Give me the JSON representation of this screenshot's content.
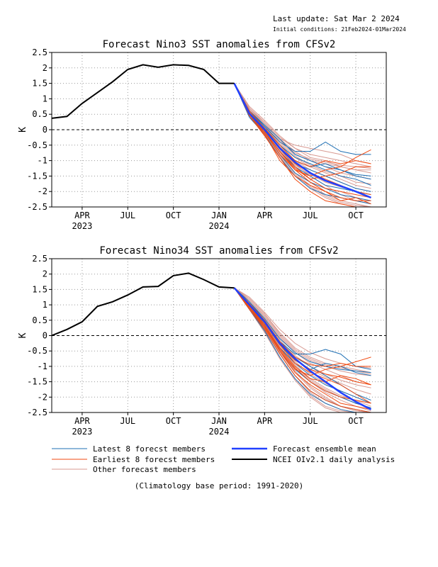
{
  "header": {
    "last_update": "Last update: Sat Mar  2 2024",
    "initial_conditions": "Initial conditions: 21Feb2024-01Mar2024"
  },
  "footer": {
    "climatology": "(Climatology base period: 1991-2020)"
  },
  "legend": {
    "items": [
      {
        "label": "Latest 8 forecst members",
        "color": "#1e6fb4"
      },
      {
        "label": "Earliest 8 forecst members",
        "color": "#f04a12"
      },
      {
        "label": "Other forecast members",
        "color": "#d89a92"
      },
      {
        "label": "Forecast ensemble mean",
        "color": "#2040ff"
      },
      {
        "label": "NCEI OIv2.1 daily analysis",
        "color": "#000000"
      }
    ]
  },
  "chart_data": [
    {
      "type": "line",
      "title": "Forecast Nino3 SST anomalies from CFSv2",
      "ylabel": "K",
      "ylim": [
        -2.5,
        2.5
      ],
      "yticks": [
        2.5,
        2,
        1.5,
        1,
        0.5,
        0,
        -0.5,
        -1,
        -1.5,
        -2,
        -2.5
      ],
      "ytick_labels": [
        "2.5",
        "2",
        "1.5",
        "1",
        "0.5",
        "0",
        "-0.5",
        "-1",
        "-1.5",
        "-2",
        "-2.5"
      ],
      "x_range": [
        "2023-02-01",
        "2024-12-01"
      ],
      "xticks": [
        {
          "date": "2023-04-01",
          "month": "APR",
          "year": "2023"
        },
        {
          "date": "2023-07-01",
          "month": "JUL",
          "year": ""
        },
        {
          "date": "2023-10-01",
          "month": "OCT",
          "year": ""
        },
        {
          "date": "2024-01-01",
          "month": "JAN",
          "year": "2024"
        },
        {
          "date": "2024-04-01",
          "month": "APR",
          "year": ""
        },
        {
          "date": "2024-07-01",
          "month": "JUL",
          "year": ""
        },
        {
          "date": "2024-10-01",
          "month": "OCT",
          "year": ""
        }
      ],
      "grid": true,
      "zero_line": "dashed",
      "observed": {
        "name": "NCEI OIv2.1 daily analysis",
        "x": [
          "2023-02-01",
          "2023-03-01",
          "2023-04-01",
          "2023-05-01",
          "2023-06-01",
          "2023-07-01",
          "2023-08-01",
          "2023-09-01",
          "2023-10-01",
          "2023-11-01",
          "2023-12-01",
          "2024-01-01",
          "2024-02-01"
        ],
        "y": [
          0.37,
          0.43,
          0.85,
          1.2,
          1.55,
          1.95,
          2.1,
          2.02,
          2.1,
          2.08,
          1.95,
          1.5,
          1.5
        ]
      },
      "forecast_months": [
        "2024-02-01",
        "2024-03-01",
        "2024-04-01",
        "2024-05-01",
        "2024-06-01",
        "2024-07-01",
        "2024-08-01",
        "2024-09-01",
        "2024-10-01",
        "2024-11-01"
      ],
      "ensemble_mean": {
        "name": "Forecast ensemble mean",
        "y": [
          1.5,
          0.52,
          0.0,
          -0.6,
          -1.05,
          -1.4,
          -1.65,
          -1.82,
          -2.0,
          -2.2
        ]
      },
      "latest_members": {
        "name": "Latest 8 forecst members",
        "members": [
          [
            1.5,
            0.6,
            0.1,
            -0.4,
            -0.7,
            -0.7,
            -0.4,
            -0.7,
            -0.8,
            -0.8
          ],
          [
            1.5,
            0.55,
            0.05,
            -0.5,
            -1.0,
            -1.2,
            -1.1,
            -1.3,
            -1.5,
            -1.6
          ],
          [
            1.5,
            0.5,
            -0.05,
            -0.7,
            -1.2,
            -1.5,
            -1.8,
            -1.9,
            -2.0,
            -2.1
          ],
          [
            1.5,
            0.45,
            -0.1,
            -0.8,
            -1.4,
            -1.7,
            -1.9,
            -2.1,
            -2.2,
            -2.3
          ],
          [
            1.5,
            0.5,
            0.0,
            -0.6,
            -1.1,
            -1.3,
            -1.5,
            -1.7,
            -1.9,
            -2.0
          ],
          [
            1.5,
            0.55,
            0.05,
            -0.5,
            -0.9,
            -1.1,
            -1.3,
            -1.5,
            -1.6,
            -1.8
          ],
          [
            1.5,
            0.4,
            -0.15,
            -0.9,
            -1.5,
            -1.9,
            -2.1,
            -2.2,
            -2.3,
            -2.4
          ],
          [
            1.5,
            0.6,
            0.15,
            -0.3,
            -0.8,
            -1.0,
            -1.2,
            -1.3,
            -1.45,
            -1.5
          ]
        ]
      },
      "earliest_members": {
        "name": "Earliest 8 forecst members",
        "members": [
          [
            1.5,
            0.45,
            -0.2,
            -0.9,
            -1.6,
            -2.0,
            -2.3,
            -2.4,
            -2.5,
            -2.5
          ],
          [
            1.5,
            0.5,
            -0.1,
            -0.7,
            -1.3,
            -1.7,
            -2.0,
            -2.2,
            -2.3,
            -2.3
          ],
          [
            1.5,
            0.55,
            0.0,
            -0.6,
            -1.1,
            -1.4,
            -1.6,
            -1.8,
            -2.0,
            -2.1
          ],
          [
            1.5,
            0.6,
            0.05,
            -0.5,
            -1.0,
            -1.2,
            -1.0,
            -1.1,
            -1.0,
            -1.1
          ],
          [
            1.5,
            0.5,
            -0.1,
            -0.8,
            -1.3,
            -1.5,
            -1.3,
            -1.2,
            -0.9,
            -0.65
          ],
          [
            1.5,
            0.45,
            -0.15,
            -1.0,
            -1.5,
            -1.8,
            -2.0,
            -2.3,
            -2.2,
            -2.4
          ],
          [
            1.5,
            0.55,
            0.0,
            -0.6,
            -1.2,
            -1.6,
            -1.9,
            -2.0,
            -2.1,
            -2.2
          ],
          [
            1.5,
            0.5,
            -0.05,
            -0.7,
            -1.25,
            -1.6,
            -1.5,
            -1.4,
            -1.2,
            -1.2
          ]
        ]
      },
      "other_members": {
        "name": "Other forecast members",
        "members": [
          [
            1.5,
            0.7,
            0.2,
            -0.3,
            -0.5,
            -0.6,
            -0.7,
            -0.8,
            -1.0,
            -1.1
          ],
          [
            1.5,
            0.65,
            0.15,
            -0.4,
            -0.8,
            -1.0,
            -1.1,
            -1.2,
            -1.3,
            -1.4
          ],
          [
            1.5,
            0.6,
            0.1,
            -0.5,
            -0.9,
            -1.2,
            -1.4,
            -1.6,
            -1.8,
            -1.9
          ],
          [
            1.5,
            0.55,
            0.0,
            -0.6,
            -1.1,
            -1.5,
            -1.8,
            -2.1,
            -2.3,
            -2.4
          ],
          [
            1.5,
            0.5,
            -0.1,
            -0.8,
            -1.4,
            -1.8,
            -2.1,
            -2.3,
            -2.4,
            -2.5
          ],
          [
            1.5,
            0.75,
            0.3,
            -0.2,
            -0.6,
            -0.8,
            -0.9,
            -1.0,
            -1.1,
            -1.2
          ],
          [
            1.5,
            0.6,
            0.05,
            -0.55,
            -1.0,
            -1.3,
            -1.5,
            -1.7,
            -1.9,
            -2.0
          ],
          [
            1.5,
            0.45,
            -0.2,
            -0.9,
            -1.5,
            -1.9,
            -2.2,
            -2.4,
            -2.5,
            -2.5
          ],
          [
            1.5,
            0.65,
            0.2,
            -0.3,
            -0.7,
            -1.0,
            -1.2,
            -1.4,
            -1.5,
            -1.6
          ],
          [
            1.5,
            0.55,
            -0.05,
            -0.7,
            -1.2,
            -1.6,
            -1.9,
            -2.0,
            -2.2,
            -2.3
          ],
          [
            1.5,
            0.7,
            0.25,
            -0.25,
            -0.6,
            -0.9,
            -1.0,
            -1.2,
            -1.3,
            -1.3
          ],
          [
            1.5,
            0.5,
            -0.1,
            -0.75,
            -1.3,
            -1.7,
            -2.0,
            -2.2,
            -2.3,
            -2.4
          ],
          [
            1.5,
            0.6,
            0.1,
            -0.45,
            -0.85,
            -1.15,
            -1.35,
            -1.5,
            -1.7,
            -1.75
          ],
          [
            1.5,
            0.45,
            -0.15,
            -0.85,
            -1.45,
            -1.85,
            -2.15,
            -2.35,
            -2.45,
            -2.5
          ],
          [
            1.5,
            0.65,
            0.1,
            -0.35,
            -0.75,
            -0.95,
            -1.05,
            -1.15,
            -1.2,
            -1.25
          ],
          [
            1.5,
            0.55,
            0.0,
            -0.65,
            -1.15,
            -1.45,
            -1.7,
            -1.85,
            -2.0,
            -2.1
          ]
        ]
      }
    },
    {
      "type": "line",
      "title": "Forecast Nino34 SST anomalies from CFSv2",
      "ylabel": "K",
      "ylim": [
        -2.5,
        2.5
      ],
      "yticks": [
        2.5,
        2,
        1.5,
        1,
        0.5,
        0,
        -0.5,
        -1,
        -1.5,
        -2,
        -2.5
      ],
      "ytick_labels": [
        "2.5",
        "2",
        "1.5",
        "1",
        "0.5",
        "0",
        "-0.5",
        "-1",
        "-1.5",
        "-2",
        "-2.5"
      ],
      "x_range": [
        "2023-02-01",
        "2024-12-01"
      ],
      "xticks": [
        {
          "date": "2023-04-01",
          "month": "APR",
          "year": "2023"
        },
        {
          "date": "2023-07-01",
          "month": "JUL",
          "year": ""
        },
        {
          "date": "2023-10-01",
          "month": "OCT",
          "year": ""
        },
        {
          "date": "2024-01-01",
          "month": "JAN",
          "year": "2024"
        },
        {
          "date": "2024-04-01",
          "month": "APR",
          "year": ""
        },
        {
          "date": "2024-07-01",
          "month": "JUL",
          "year": ""
        },
        {
          "date": "2024-10-01",
          "month": "OCT",
          "year": ""
        }
      ],
      "grid": true,
      "zero_line": "dashed",
      "observed": {
        "name": "NCEI OIv2.1 daily analysis",
        "x": [
          "2023-02-01",
          "2023-03-01",
          "2023-04-01",
          "2023-05-01",
          "2023-06-01",
          "2023-07-01",
          "2023-08-01",
          "2023-09-01",
          "2023-10-01",
          "2023-11-01",
          "2023-12-01",
          "2024-01-01",
          "2024-02-01"
        ],
        "y": [
          0.0,
          0.2,
          0.45,
          0.95,
          1.1,
          1.32,
          1.58,
          1.6,
          1.95,
          2.03,
          1.82,
          1.58,
          1.55
        ]
      },
      "forecast_months": [
        "2024-02-01",
        "2024-03-01",
        "2024-04-01",
        "2024-05-01",
        "2024-06-01",
        "2024-07-01",
        "2024-08-01",
        "2024-09-01",
        "2024-10-01",
        "2024-11-01"
      ],
      "ensemble_mean": {
        "name": "Forecast ensemble mean",
        "y": [
          1.55,
          1.0,
          0.45,
          -0.25,
          -0.75,
          -1.15,
          -1.5,
          -1.85,
          -2.15,
          -2.4
        ]
      },
      "latest_members": {
        "name": "Latest 8 forecst members",
        "members": [
          [
            1.55,
            1.1,
            0.5,
            -0.2,
            -0.6,
            -0.6,
            -0.45,
            -0.6,
            -1.0,
            -1.1
          ],
          [
            1.55,
            1.0,
            0.4,
            -0.3,
            -0.8,
            -1.1,
            -0.9,
            -1.0,
            -1.2,
            -1.3
          ],
          [
            1.55,
            0.95,
            0.3,
            -0.5,
            -1.1,
            -1.5,
            -1.8,
            -2.0,
            -2.2,
            -2.35
          ],
          [
            1.55,
            0.9,
            0.2,
            -0.6,
            -1.3,
            -1.8,
            -2.1,
            -2.3,
            -2.4,
            -2.5
          ],
          [
            1.55,
            1.05,
            0.45,
            -0.2,
            -0.7,
            -1.0,
            -1.3,
            -1.6,
            -1.9,
            -2.1
          ],
          [
            1.55,
            1.0,
            0.35,
            -0.4,
            -0.9,
            -1.3,
            -1.6,
            -1.8,
            -2.0,
            -2.2
          ],
          [
            1.55,
            0.85,
            0.15,
            -0.7,
            -1.4,
            -1.9,
            -2.2,
            -2.4,
            -2.5,
            -2.5
          ],
          [
            1.55,
            1.1,
            0.55,
            -0.1,
            -0.55,
            -0.85,
            -1.0,
            -1.1,
            -1.15,
            -1.2
          ]
        ]
      },
      "earliest_members": {
        "name": "Earliest 8 forecst members",
        "members": [
          [
            1.55,
            0.9,
            0.3,
            -0.5,
            -1.1,
            -1.3,
            -1.1,
            -1.0,
            -0.85,
            -0.7
          ],
          [
            1.55,
            0.95,
            0.35,
            -0.4,
            -1.0,
            -1.4,
            -1.5,
            -1.3,
            -1.4,
            -1.6
          ],
          [
            1.55,
            1.0,
            0.4,
            -0.3,
            -0.9,
            -1.2,
            -1.4,
            -1.6,
            -1.9,
            -2.2
          ],
          [
            1.55,
            0.85,
            0.2,
            -0.6,
            -1.3,
            -1.8,
            -2.1,
            -2.3,
            -2.4,
            -2.5
          ],
          [
            1.55,
            1.05,
            0.5,
            -0.2,
            -0.7,
            -0.95,
            -1.0,
            -0.9,
            -1.0,
            -1.0
          ],
          [
            1.55,
            0.9,
            0.25,
            -0.5,
            -1.2,
            -1.6,
            -1.9,
            -2.2,
            -2.3,
            -2.4
          ],
          [
            1.55,
            1.0,
            0.45,
            -0.25,
            -0.8,
            -1.1,
            -1.25,
            -1.35,
            -1.5,
            -1.6
          ],
          [
            1.55,
            0.95,
            0.3,
            -0.45,
            -1.05,
            -1.5,
            -1.8,
            -2.0,
            -2.1,
            -2.2
          ]
        ]
      },
      "other_members": {
        "name": "Other forecast members",
        "members": [
          [
            1.55,
            1.2,
            0.7,
            0.1,
            -0.4,
            -0.7,
            -0.9,
            -1.0,
            -1.1,
            -1.2
          ],
          [
            1.55,
            1.15,
            0.6,
            -0.05,
            -0.55,
            -0.9,
            -1.1,
            -1.3,
            -1.5,
            -1.6
          ],
          [
            1.55,
            1.05,
            0.45,
            -0.3,
            -0.85,
            -1.25,
            -1.55,
            -1.8,
            -2.0,
            -2.2
          ],
          [
            1.55,
            0.95,
            0.3,
            -0.5,
            -1.15,
            -1.65,
            -2.0,
            -2.3,
            -2.45,
            -2.5
          ],
          [
            1.55,
            0.85,
            0.1,
            -0.75,
            -1.45,
            -2.0,
            -2.35,
            -2.5,
            -2.5,
            -2.5
          ],
          [
            1.55,
            1.25,
            0.75,
            0.2,
            -0.25,
            -0.55,
            -0.75,
            -0.9,
            -1.0,
            -1.05
          ],
          [
            1.55,
            1.0,
            0.4,
            -0.35,
            -0.95,
            -1.4,
            -1.7,
            -1.95,
            -2.1,
            -2.3
          ],
          [
            1.55,
            0.9,
            0.2,
            -0.6,
            -1.3,
            -1.85,
            -2.2,
            -2.4,
            -2.5,
            -2.5
          ],
          [
            1.55,
            1.1,
            0.55,
            -0.15,
            -0.65,
            -1.0,
            -1.25,
            -1.45,
            -1.6,
            -1.7
          ],
          [
            1.55,
            0.95,
            0.35,
            -0.45,
            -1.05,
            -1.5,
            -1.85,
            -2.1,
            -2.3,
            -2.45
          ],
          [
            1.55,
            1.15,
            0.65,
            0.0,
            -0.5,
            -0.8,
            -1.0,
            -1.15,
            -1.25,
            -1.3
          ],
          [
            1.55,
            0.9,
            0.25,
            -0.55,
            -1.2,
            -1.7,
            -2.05,
            -2.3,
            -2.45,
            -2.5
          ],
          [
            1.55,
            1.05,
            0.5,
            -0.25,
            -0.75,
            -1.1,
            -1.35,
            -1.55,
            -1.75,
            -1.9
          ],
          [
            1.55,
            0.85,
            0.15,
            -0.7,
            -1.4,
            -1.95,
            -2.3,
            -2.45,
            -2.5,
            -2.5
          ],
          [
            1.55,
            1.2,
            0.7,
            0.05,
            -0.45,
            -0.75,
            -0.95,
            -1.05,
            -1.15,
            -1.25
          ],
          [
            1.55,
            1.0,
            0.35,
            -0.4,
            -1.0,
            -1.45,
            -1.75,
            -2.0,
            -2.2,
            -2.35
          ]
        ]
      }
    }
  ]
}
